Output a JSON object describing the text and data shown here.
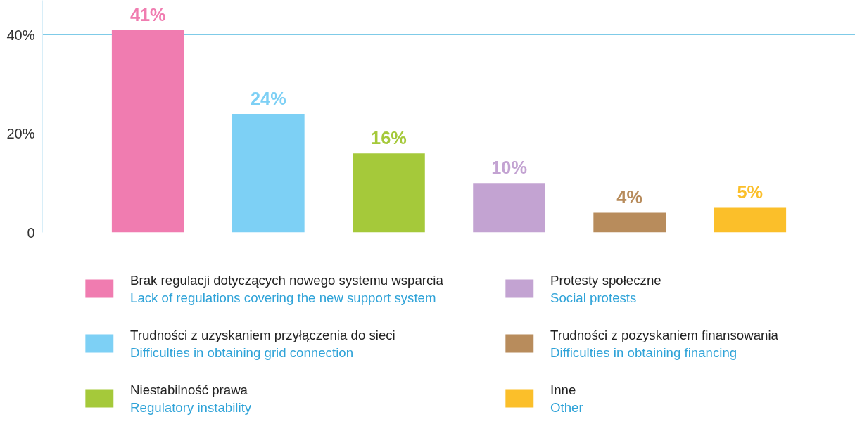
{
  "chart_data": {
    "type": "bar",
    "categories": [
      null,
      null,
      null,
      null,
      null,
      null
    ],
    "series": [
      {
        "name": "Brak regulacji dotyczących nowego systemu wsparcia\nLack of regulations covering the new support system",
        "color": "#f07cb0",
        "values": [
          41,
          null,
          null,
          null,
          null,
          null
        ],
        "value_labels": [
          "41%",
          null,
          null,
          null,
          null,
          null
        ]
      },
      {
        "name": "Trudności z uzyskaniem przyłączenia do sieci\nDifficulties in obtaining grid connection",
        "color": "#7dd0f5",
        "values": [
          null,
          24,
          null,
          null,
          null,
          null
        ],
        "value_labels": [
          null,
          "24%",
          null,
          null,
          null,
          null
        ]
      },
      {
        "name": "Niestabilność prawa\nRegulatory instability",
        "color": "#a5c93a",
        "values": [
          null,
          null,
          16,
          null,
          null,
          null
        ],
        "value_labels": [
          null,
          null,
          "16%",
          null,
          null,
          null
        ]
      },
      {
        "name": "Protesty społeczne\nSocial protests",
        "color": "#c3a3d2",
        "values": [
          null,
          null,
          null,
          10,
          null,
          null
        ],
        "value_labels": [
          null,
          null,
          null,
          "10%",
          null,
          null
        ]
      },
      {
        "name": "Trudności z pozyskaniem finansowania\nDifficulties in obtaining financing",
        "color": "#b88c5c",
        "values": [
          null,
          null,
          null,
          null,
          4,
          null
        ],
        "value_labels": [
          null,
          null,
          null,
          null,
          "4%",
          null
        ]
      },
      {
        "name": "Inne\nOther",
        "color": "#fbbf2a",
        "values": [
          null,
          null,
          null,
          null,
          null,
          5
        ],
        "value_labels": [
          null,
          null,
          null,
          null,
          null,
          "5%"
        ]
      }
    ],
    "ylim": [
      0,
      47
    ],
    "yticks": [
      {
        "value": 0,
        "label": "0"
      },
      {
        "value": 20,
        "label": "20%"
      },
      {
        "value": 40,
        "label": "40%"
      }
    ],
    "grid": "y",
    "legend": "bottom"
  }
}
